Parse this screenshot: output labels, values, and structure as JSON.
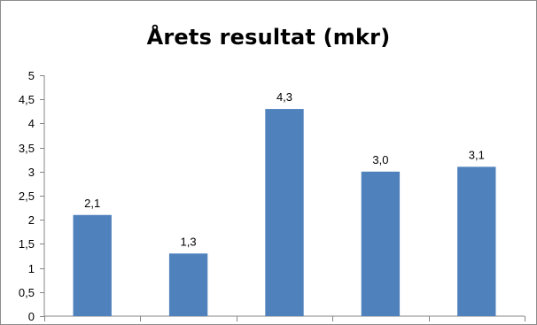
{
  "chart_data": {
    "type": "bar",
    "title": "Årets resultat (mkr)",
    "categories": [
      "",
      "",
      "",
      "",
      ""
    ],
    "values": [
      2.1,
      1.3,
      4.3,
      3.0,
      3.1
    ],
    "value_labels": [
      "2,1",
      "1,3",
      "4,3",
      "3,0",
      "3,1"
    ],
    "xlabel": "",
    "ylabel": "",
    "ylim": [
      0,
      5
    ],
    "yticks": [
      0,
      0.5,
      1,
      1.5,
      2,
      2.5,
      3,
      3.5,
      4,
      4.5,
      5
    ],
    "ytick_labels": [
      "0",
      "0,5",
      "1",
      "1,5",
      "2",
      "2,5",
      "3",
      "3,5",
      "4",
      "4,5",
      "5"
    ],
    "grid": false,
    "legend": "none",
    "bar_color": "#4f81bd"
  }
}
